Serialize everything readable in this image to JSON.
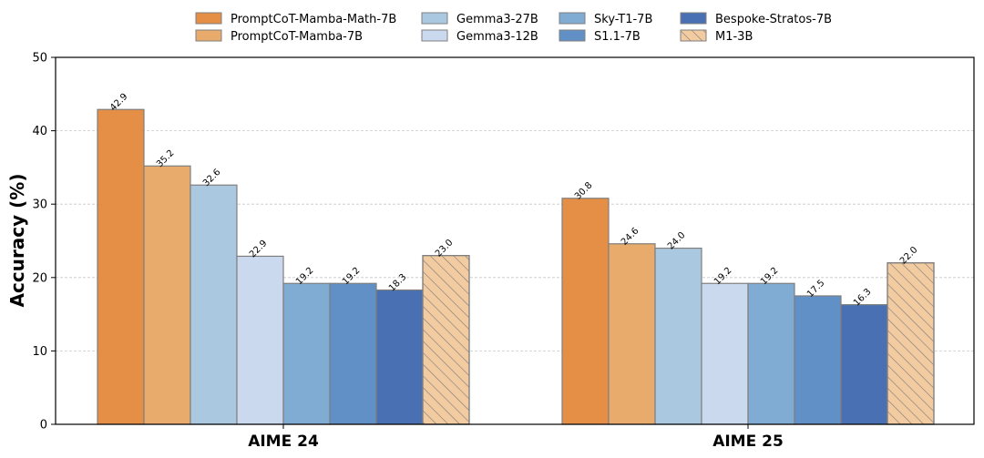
{
  "chart_data": {
    "type": "bar",
    "categories": [
      "AIME 24",
      "AIME 25"
    ],
    "ylabel": "Accuracy (%)",
    "xlabel": "",
    "ylim": [
      0,
      50
    ],
    "yticks": [
      0,
      10,
      20,
      30,
      40,
      50
    ],
    "grid": "horizontal-dashed",
    "legend": "top-center",
    "series": [
      {
        "name": "PromptCoT-Mamba-Math-7B",
        "values": [
          42.9,
          30.8
        ],
        "labels": [
          "42.9",
          "30.8"
        ],
        "color": "#E58E45",
        "hatch": false
      },
      {
        "name": "PromptCoT-Mamba-7B",
        "values": [
          35.2,
          24.6
        ],
        "labels": [
          "35.2",
          "24.6"
        ],
        "color": "#E9AB6C",
        "hatch": false
      },
      {
        "name": "Gemma3-27B",
        "values": [
          32.6,
          24.0
        ],
        "labels": [
          "32.6",
          "24.0"
        ],
        "color": "#AAC8E0",
        "hatch": false
      },
      {
        "name": "Gemma3-12B",
        "values": [
          22.9,
          19.2
        ],
        "labels": [
          "22.9",
          "19.2"
        ],
        "color": "#CBD9EF",
        "hatch": false
      },
      {
        "name": "Sky-T1-7B",
        "values": [
          19.2,
          19.2
        ],
        "labels": [
          "19.2",
          "19.2"
        ],
        "color": "#80ABD2",
        "hatch": false
      },
      {
        "name": "S1.1-7B",
        "values": [
          19.2,
          17.5
        ],
        "labels": [
          "19.2",
          "17.5"
        ],
        "color": "#6190C6",
        "hatch": false
      },
      {
        "name": "Bespoke-Stratos-7B",
        "values": [
          18.3,
          16.3
        ],
        "labels": [
          "18.3",
          "16.3"
        ],
        "color": "#4870B2",
        "hatch": false
      },
      {
        "name": "M1-3B",
        "values": [
          23.0,
          22.0
        ],
        "labels": [
          "23.0",
          "22.0"
        ],
        "color": "#F2CBA0",
        "hatch": true
      }
    ]
  }
}
